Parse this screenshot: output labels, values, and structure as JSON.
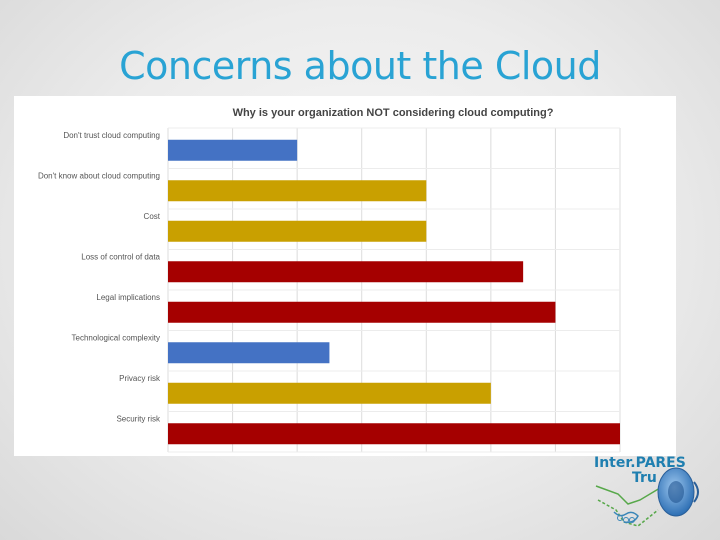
{
  "slide": {
    "title": "Concerns about the Cloud"
  },
  "chart_data": {
    "type": "bar",
    "orientation": "horizontal",
    "title": "Why is your organization NOT considering cloud computing?",
    "categories": [
      "Don't trust cloud computing",
      "Don't know about cloud computing",
      "Cost",
      "Loss of control of data",
      "Legal implications",
      "Technological complexity",
      "Privacy risk",
      "Security risk"
    ],
    "values": [
      2,
      4,
      4,
      5.5,
      6,
      2.5,
      5,
      7
    ],
    "bar_colors": [
      "#4472c4",
      "#c9a000",
      "#c9a000",
      "#a50000",
      "#a50000",
      "#4472c4",
      "#c9a000",
      "#a50000"
    ],
    "xlim": [
      0,
      7
    ],
    "xlabel": "",
    "ylabel": "",
    "grid": true,
    "legend": "none"
  },
  "logo": {
    "line1": "Inter.PARES",
    "line2": "Tru"
  },
  "icons": {
    "speaker": "speaker-icon",
    "handshake": "handshake-icon"
  }
}
